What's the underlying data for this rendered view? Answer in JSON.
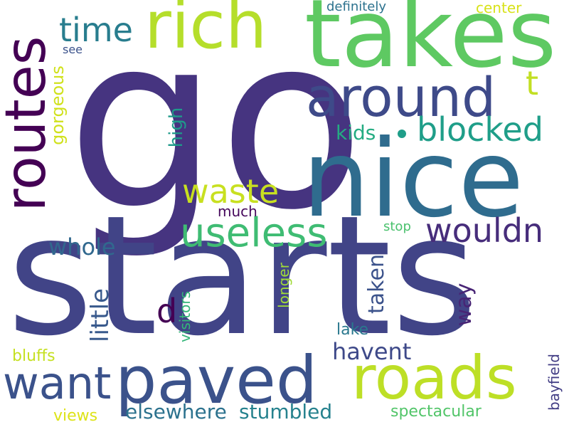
{
  "words": [
    {
      "text": "go",
      "color": "#463480"
    },
    {
      "text": "starts",
      "color": "#414487"
    },
    {
      "text": "nice",
      "color": "#2f6c8e"
    },
    {
      "text": "takes",
      "color": "#5ec962"
    },
    {
      "text": "rich",
      "color": "#b5de2b"
    },
    {
      "text": "routes",
      "color": "#440154"
    },
    {
      "text": "around",
      "color": "#3e4a89"
    },
    {
      "text": "paved",
      "color": "#3b528b"
    },
    {
      "text": "roads",
      "color": "#bddf26"
    },
    {
      "text": "useless",
      "color": "#3fbc73"
    },
    {
      "text": "want",
      "color": "#3b528b"
    },
    {
      "text": "wouldn",
      "color": "#472d7b"
    },
    {
      "text": "blocked",
      "color": "#1f9e89"
    },
    {
      "text": "time",
      "color": "#287d8e"
    },
    {
      "text": "waste",
      "color": "#c8e020"
    },
    {
      "text": "whole",
      "color": "#31688e"
    },
    {
      "text": "havent",
      "color": "#3e4989"
    },
    {
      "text": "elsewhere",
      "color": "#2c728e"
    },
    {
      "text": "stumbled",
      "color": "#26828e"
    },
    {
      "text": "little",
      "color": "#38598c"
    },
    {
      "text": "taken",
      "color": "#3b528b"
    },
    {
      "text": "d",
      "color": "#440154"
    },
    {
      "text": "t",
      "color": "#c2df23"
    },
    {
      "text": "kids",
      "color": "#25ac82"
    },
    {
      "text": "high",
      "color": "#1f9a8a"
    },
    {
      "text": "gorgeous",
      "color": "#d0e11c"
    },
    {
      "text": "way",
      "color": "#482475"
    },
    {
      "text": "much",
      "color": "#46085c"
    },
    {
      "text": "stop",
      "color": "#4ac16d"
    },
    {
      "text": "longer",
      "color": "#a0da39"
    },
    {
      "text": "visitors",
      "color": "#34b679"
    },
    {
      "text": "lake",
      "color": "#2a788e"
    },
    {
      "text": "bluffs",
      "color": "#c5e021"
    },
    {
      "text": "views",
      "color": "#dde318"
    },
    {
      "text": "spectacular",
      "color": "#52c569"
    },
    {
      "text": "bayfield",
      "color": "#433e85"
    },
    {
      "text": "definitely",
      "color": "#2c728e"
    },
    {
      "text": "center",
      "color": "#d8e219"
    },
    {
      "text": "see",
      "color": "#3b528b"
    }
  ]
}
